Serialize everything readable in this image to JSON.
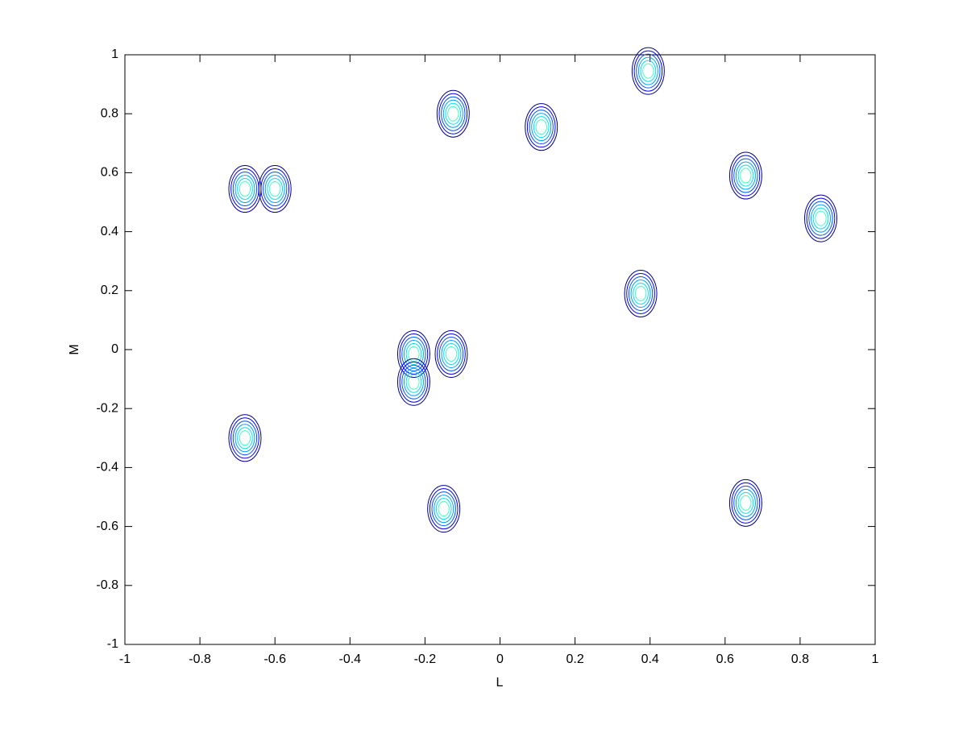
{
  "chart_data": {
    "type": "contour",
    "xlabel": "L",
    "ylabel": "M",
    "x": [
      -0.68,
      -0.6,
      -0.125,
      0.11,
      0.395,
      0.655,
      0.855,
      0.375,
      -0.23,
      -0.13,
      -0.23,
      -0.68,
      -0.15,
      0.655
    ],
    "y": [
      0.545,
      0.545,
      0.8,
      0.755,
      0.945,
      0.59,
      0.445,
      0.19,
      -0.015,
      -0.015,
      -0.11,
      -0.3,
      -0.54,
      -0.52
    ],
    "xlim": [
      -1,
      1
    ],
    "ylim": [
      -1,
      1
    ],
    "xticks": [
      -1,
      -0.8,
      -0.6,
      -0.4,
      -0.2,
      0,
      0.2,
      0.4,
      0.6,
      0.8,
      1
    ],
    "yticks": [
      -1,
      -0.8,
      -0.6,
      -0.4,
      -0.2,
      0,
      0.2,
      0.4,
      0.6,
      0.8,
      1
    ],
    "colors": [
      "#00008f",
      "#0000ff",
      "#0050ff",
      "#00a0ff",
      "#00e0ff",
      "#40ffbf"
    ]
  }
}
